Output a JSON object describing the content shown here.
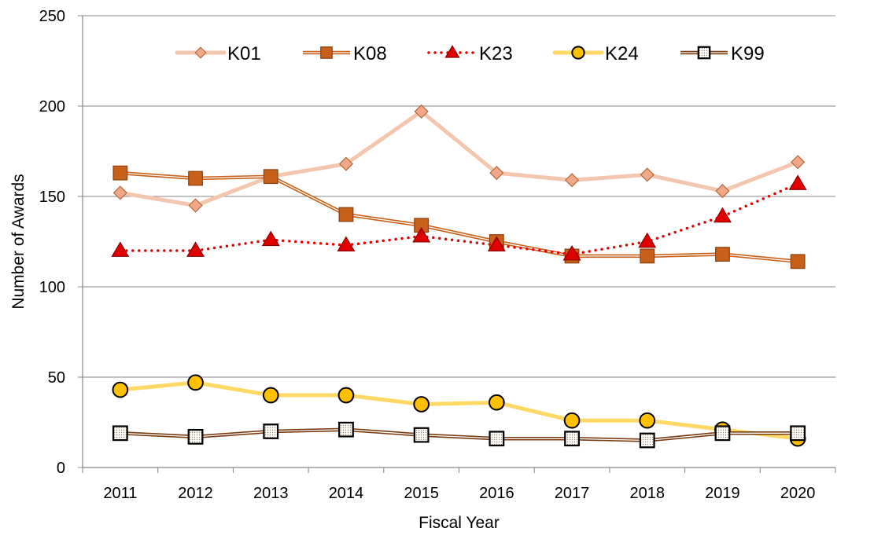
{
  "chart_data": {
    "type": "line",
    "title": "",
    "xlabel": "Fiscal Year",
    "ylabel": "Number of Awards",
    "ylim": [
      0,
      250
    ],
    "yticks": [
      0,
      50,
      100,
      150,
      200,
      250
    ],
    "grid": "horizontal",
    "legend_position": "top",
    "categories": [
      "2011",
      "2012",
      "2013",
      "2014",
      "2015",
      "2016",
      "2017",
      "2018",
      "2019",
      "2020"
    ],
    "series": [
      {
        "name": "K01",
        "values": [
          152,
          145,
          161,
          168,
          197,
          163,
          159,
          162,
          153,
          169
        ],
        "line_color": "#F5C6AE",
        "line_style": "solid-thick",
        "marker": "diamond",
        "marker_fill": "#F2A888",
        "marker_stroke": "#B06A3C"
      },
      {
        "name": "K08",
        "values": [
          163,
          160,
          161,
          140,
          134,
          125,
          117,
          117,
          118,
          114
        ],
        "line_color": "#C8601A",
        "line_style": "double",
        "marker": "square",
        "marker_fill": "#C8601A",
        "marker_stroke": "#8A3F0E"
      },
      {
        "name": "K23",
        "values": [
          120,
          120,
          126,
          123,
          128,
          123,
          118,
          125,
          139,
          157
        ],
        "line_color": "#E00000",
        "line_style": "dotted",
        "marker": "triangle",
        "marker_fill": "#E00000",
        "marker_stroke": "#8B0000"
      },
      {
        "name": "K24",
        "values": [
          43,
          47,
          40,
          40,
          35,
          36,
          26,
          26,
          21,
          16
        ],
        "line_color": "#FFD966",
        "line_style": "solid-thick",
        "marker": "circle",
        "marker_fill": "#FFC000",
        "marker_stroke": "#000000"
      },
      {
        "name": "K99",
        "values": [
          19,
          17,
          20,
          21,
          18,
          16,
          16,
          15,
          19,
          19
        ],
        "line_color": "#7A3A10",
        "line_style": "double",
        "marker": "square-dotted",
        "marker_fill": "#FFFFFF",
        "marker_stroke": "#000000"
      }
    ]
  }
}
